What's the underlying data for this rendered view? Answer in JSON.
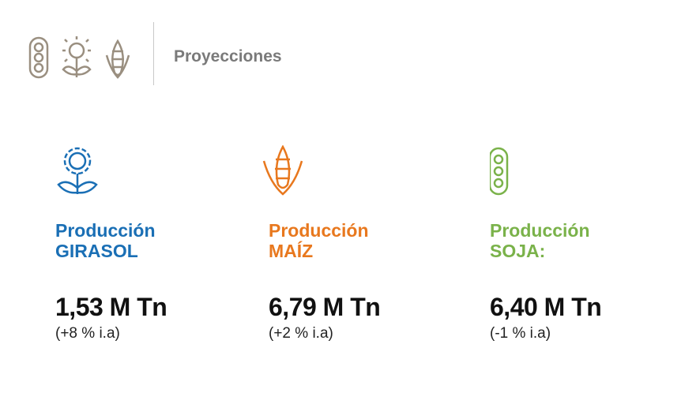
{
  "header": {
    "title": "Proyecciones"
  },
  "cards": [
    {
      "label": "Producción",
      "crop": "GIRASOL",
      "value": "1,53 M Tn",
      "change": "(+8 % i.a)"
    },
    {
      "label": "Producción",
      "crop": "MAÍZ",
      "value": "6,79 M Tn",
      "change": "(+2 % i.a)"
    },
    {
      "label": "Producción",
      "crop": "SOJA:",
      "value": "6,40 M Tn",
      "change": "(-1 % i.a)"
    }
  ]
}
